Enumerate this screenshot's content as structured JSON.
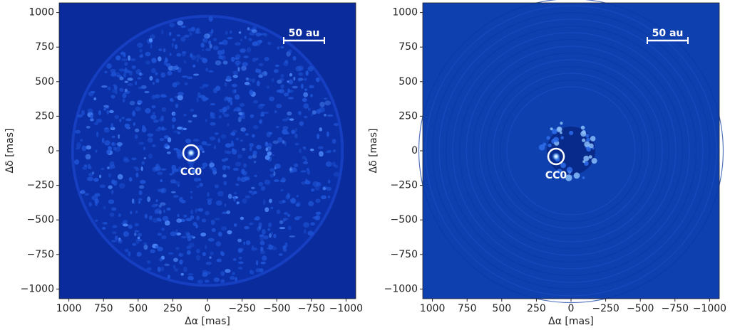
{
  "chart_data": [
    {
      "type": "image",
      "xlabel": "Δα [mas]",
      "ylabel": "Δδ [mas]",
      "xlim": [
        1070,
        -1070
      ],
      "ylim": [
        -1070,
        1070
      ],
      "xticks": [
        1000,
        750,
        500,
        250,
        0,
        {
          "value": -250,
          "label": "−250"
        },
        {
          "value": -500,
          "label": "−500"
        },
        {
          "value": -750,
          "label": "−750"
        },
        {
          "value": -1000,
          "label": "−1000"
        }
      ],
      "yticks": [
        {
          "value": -1000,
          "label": "−1000"
        },
        {
          "value": -750,
          "label": "−750"
        },
        {
          "value": -500,
          "label": "−500"
        },
        {
          "value": -250,
          "label": "−250"
        },
        0,
        250,
        500,
        750,
        1000
      ],
      "scale_bar": "50 au",
      "companion": "CC0"
    },
    {
      "type": "image",
      "xlabel": "Δα [mas]",
      "ylabel": "Δδ [mas]",
      "xlim": [
        1070,
        -1070
      ],
      "ylim": [
        -1070,
        1070
      ],
      "xticks": [
        1000,
        750,
        500,
        250,
        0,
        {
          "value": -250,
          "label": "−250"
        },
        {
          "value": -500,
          "label": "−500"
        },
        {
          "value": -750,
          "label": "−750"
        },
        {
          "value": -1000,
          "label": "−1000"
        }
      ],
      "yticks": [
        {
          "value": -1000,
          "label": "−1000"
        },
        {
          "value": -750,
          "label": "−750"
        },
        {
          "value": -500,
          "label": "−500"
        },
        {
          "value": -250,
          "label": "−250"
        },
        0,
        250,
        500,
        750,
        1000
      ],
      "scale_bar": "50 au",
      "companion": "CC0"
    }
  ]
}
